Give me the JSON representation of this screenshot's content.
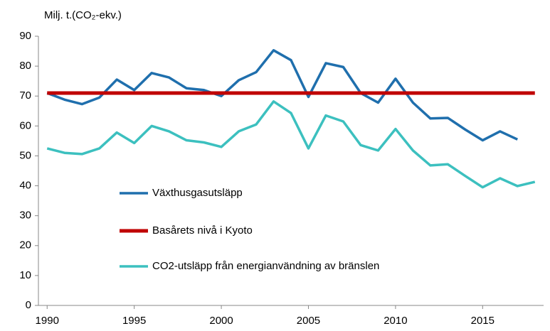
{
  "chart_data": {
    "type": "line",
    "ylabel": "Milj. t.(CO₂-ekv.)",
    "x": [
      1990,
      1991,
      1992,
      1993,
      1994,
      1995,
      1996,
      1997,
      1998,
      1999,
      2000,
      2001,
      2002,
      2003,
      2004,
      2005,
      2006,
      2007,
      2008,
      2009,
      2010,
      2011,
      2012,
      2013,
      2014,
      2015,
      2016,
      2017,
      2018
    ],
    "series": [
      {
        "name": "Växthusgasutsläpp",
        "color": "#1f6fad",
        "values": [
          71,
          68.8,
          67.3,
          69.5,
          75.5,
          72,
          77.7,
          76.2,
          72.6,
          72,
          70,
          75.3,
          78,
          85.3,
          82,
          69.7,
          81,
          79.7,
          71,
          67.8,
          75.8,
          67.8,
          62.5,
          62.7,
          58.8,
          55.2,
          58.2,
          55.5,
          null
        ]
      },
      {
        "name": "Basårets nivå i Kyoto",
        "color": "#c00000",
        "values": [
          71,
          71,
          71,
          71,
          71,
          71,
          71,
          71,
          71,
          71,
          71,
          71,
          71,
          71,
          71,
          71,
          71,
          71,
          71,
          71,
          71,
          71,
          71,
          71,
          71,
          71,
          71,
          71,
          71
        ]
      },
      {
        "name": "CO2-utsläpp från energianvändning av bränslen",
        "color": "#3cc0bf",
        "values": [
          52.5,
          51,
          50.6,
          52.5,
          57.8,
          54.3,
          60,
          58.2,
          55.2,
          54.5,
          53,
          58.2,
          60.5,
          68.2,
          64.3,
          52.5,
          63.5,
          61.5,
          53.6,
          51.8,
          59,
          51.8,
          46.8,
          47.2,
          43.3,
          39.5,
          42.5,
          39.9,
          41.3
        ]
      }
    ],
    "xlim": [
      1989.5,
      2018.5
    ],
    "xticks": [
      1990,
      1995,
      2000,
      2005,
      2010,
      2015
    ],
    "ylim": [
      0,
      90
    ],
    "yticks": [
      0,
      10,
      20,
      30,
      40,
      50,
      60,
      70,
      80,
      90
    ]
  }
}
